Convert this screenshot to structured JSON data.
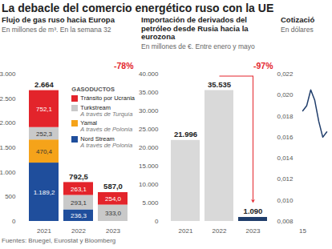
{
  "title": "La debacle del comercio energético ruso con la UE",
  "source": "Fuentes: Bruegel, Eurostat y Bloomberg",
  "chart_data": [
    {
      "type": "bar",
      "stacked": true,
      "title": "Flujo de gas ruso hacia Europa",
      "subtitle": "En millones de m³. En la semana 32",
      "categories": [
        "2021",
        "2022",
        "2023"
      ],
      "legend_title": "GASODUCTOS",
      "legend": "top-right",
      "series": [
        {
          "name": "Tránsito por Ucrania",
          "color": "#e3242b",
          "values": [
            752.1,
            263.1,
            254.0
          ],
          "value_labels": [
            "752,1",
            "263,1",
            "254,0"
          ]
        },
        {
          "name": "Turkstream",
          "subtitle": "A través de Turquía",
          "color": "#c9c9c9",
          "values": [
            252.3,
            293.1,
            333.0
          ],
          "value_labels": [
            "252,3",
            "293,1",
            "333,0"
          ]
        },
        {
          "name": "Yamal",
          "subtitle": "A través de Polonia",
          "color": "#f5a31a",
          "values": [
            470.4,
            null,
            null
          ],
          "value_labels": [
            "470,4",
            null,
            null
          ]
        },
        {
          "name": "Nord Stream",
          "subtitle": "A través de Polonia",
          "color": "#1f4e9c",
          "values": [
            1189.2,
            236.3,
            null
          ],
          "value_labels": [
            "1.189,2",
            "236,3",
            null
          ]
        }
      ],
      "totals": [
        2664,
        792.5,
        587.0
      ],
      "total_labels": [
        "2.664",
        "792,5",
        "587,0"
      ],
      "annotation": "-78%",
      "data_labels": true,
      "grid": false,
      "ylim": [
        0,
        3000
      ],
      "yticks": [
        0,
        500,
        {
          "value": 1000,
          "label": "1.000"
        },
        {
          "value": 1500,
          "label": "1.500"
        },
        {
          "value": 2000,
          "label": "2.000"
        },
        {
          "value": 2500,
          "label": "2.500"
        },
        {
          "value": 3000,
          "label": "3.000"
        }
      ]
    },
    {
      "type": "bar",
      "title": "Importación de derivados del petróleo desde Rusia hacia la eurozona",
      "subtitle": "En millones de €. Entre enero y mayo",
      "categories": [
        "2021",
        "2022",
        "2023"
      ],
      "values": [
        21996,
        35535,
        1090
      ],
      "value_labels": [
        "21.996",
        "35.535",
        "1.090"
      ],
      "colors": [
        "#d9d9d9",
        "#d9d9d9",
        "#1f3d6b"
      ],
      "annotation": "-97%",
      "data_labels": true,
      "grid": false,
      "ylim": [
        0,
        40000
      ],
      "yticks": [
        0,
        {
          "value": 5000,
          "label": "5.000"
        },
        {
          "value": 10000,
          "label": "10.000"
        },
        {
          "value": 15000,
          "label": "15.000"
        },
        {
          "value": 20000,
          "label": "20.000"
        },
        {
          "value": 25000,
          "label": "25.000"
        },
        {
          "value": 30000,
          "label": "30.000"
        },
        {
          "value": 35000,
          "label": "35.000"
        },
        {
          "value": 40000,
          "label": "40.000"
        }
      ]
    },
    {
      "type": "line",
      "title": "Cotizació",
      "subtitle": "En dólares",
      "categories": [
        "15",
        null,
        null,
        null,
        null,
        null,
        null
      ],
      "values": [
        0.0185,
        0.019,
        0.0205,
        0.0195,
        0.0175,
        0.016,
        0.0165
      ],
      "color": "#1f3d6b",
      "grid": false,
      "ylim": [
        0.008,
        0.022
      ],
      "yticks": [
        {
          "value": 0.008,
          "label": "0,008"
        },
        {
          "value": 0.01,
          "label": "0,010"
        },
        {
          "value": 0.012,
          "label": "0,012"
        },
        {
          "value": 0.014,
          "label": "0,014"
        },
        {
          "value": 0.016,
          "label": "0,016"
        },
        {
          "value": 0.018,
          "label": "0,018"
        },
        {
          "value": 0.02,
          "label": "0,020"
        },
        {
          "value": 0.022,
          "label": "0,022"
        }
      ]
    }
  ]
}
